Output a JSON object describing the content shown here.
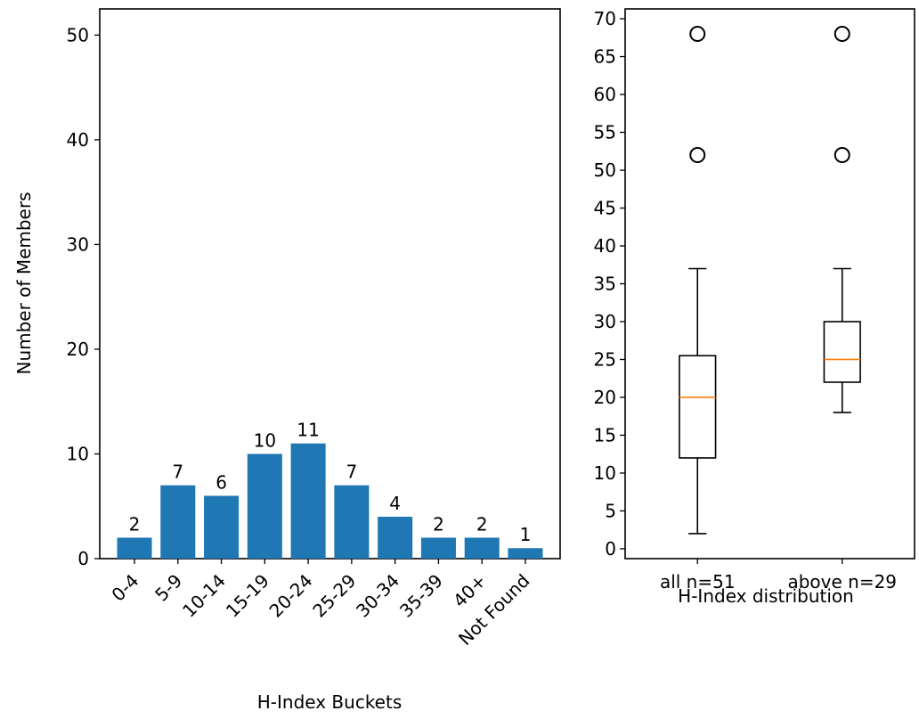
{
  "chart_data": [
    {
      "type": "bar",
      "categories": [
        "0-4",
        "5-9",
        "10-14",
        "15-19",
        "20-24",
        "25-29",
        "30-34",
        "35-39",
        "40+",
        "Not Found"
      ],
      "values": [
        2,
        7,
        6,
        10,
        11,
        7,
        4,
        2,
        2,
        1
      ],
      "data_labels": [
        "2",
        "7",
        "6",
        "10",
        "11",
        "7",
        "4",
        "2",
        "2",
        "1"
      ],
      "xlabel": "H-Index Buckets",
      "ylabel": "Number of Members",
      "ylim": [
        0,
        52.5
      ],
      "yticks": [
        "0",
        "10",
        "20",
        "30",
        "40",
        "50"
      ],
      "grid": false,
      "colors": {
        "bar": "#1f77b4"
      }
    },
    {
      "type": "box",
      "categories": [
        "all n=51",
        "above n=29"
      ],
      "boxes": [
        {
          "whisker_low": 2,
          "q1": 12,
          "median": 20,
          "q3": 25.5,
          "whisker_high": 37,
          "outliers": [
            52,
            68
          ]
        },
        {
          "whisker_low": 18,
          "q1": 22,
          "median": 25,
          "q3": 30,
          "whisker_high": 37,
          "outliers": [
            52,
            68
          ]
        }
      ],
      "xlabel": "H-Index distribution",
      "ylabel": "",
      "ylim": [
        -1.3,
        71.3
      ],
      "yticks": [
        "0",
        "5",
        "10",
        "15",
        "20",
        "25",
        "30",
        "35",
        "40",
        "45",
        "50",
        "55",
        "60",
        "65",
        "70"
      ],
      "grid": false,
      "colors": {
        "median": "#ff7f0e",
        "box": "#000000"
      }
    }
  ]
}
